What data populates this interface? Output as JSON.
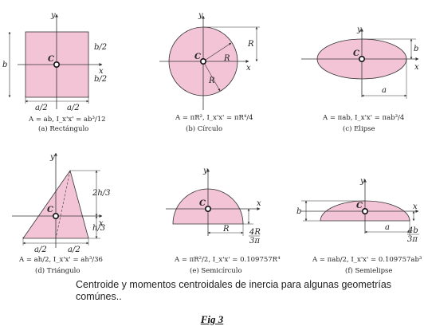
{
  "shapes": {
    "rectangle": {
      "labels": {
        "y": "y",
        "x": "x",
        "c": "C",
        "b_half_top": "b/2",
        "b_half_bottom": "b/2",
        "b": "b",
        "a_half_left": "a/2",
        "a_half_right": "a/2"
      },
      "formula": "A = ab,   I_x'x' = ab³/12",
      "caption": "(a) Rectángulo"
    },
    "circle": {
      "labels": {
        "y": "y",
        "x": "x",
        "c": "C",
        "r1": "R",
        "r2": "R",
        "r_dim": "R"
      },
      "formula": "A = πR²,   I_x'x' = πR⁴/4",
      "caption": "(b)  Círculo"
    },
    "ellipse": {
      "labels": {
        "y": "y",
        "x": "x",
        "c": "C",
        "b": "b",
        "a": "a"
      },
      "formula": "A = πab,   I_x'x' = πab³/4",
      "caption": "(c)  Elipse"
    },
    "triangle": {
      "labels": {
        "y": "y",
        "x": "x",
        "c": "C",
        "two_thirds": "2h/3",
        "one_third": "h/3",
        "a_half_left": "a/2",
        "a_half_right": "a/2"
      },
      "formula": "A = ah/2,   I_x'x' = ah³/36",
      "caption": "(d)  Triángulo"
    },
    "semicircle": {
      "labels": {
        "y": "y",
        "x": "x",
        "c": "C",
        "r": "R",
        "offset": "4R",
        "offset_den": "3π"
      },
      "formula": "A = πR²/2,   I_x'x' = 0.109757R⁴",
      "caption": "(e)  Semicírculo"
    },
    "semiellipse": {
      "labels": {
        "y": "y",
        "x": "x",
        "c": "C",
        "b": "b",
        "a": "a",
        "offset": "4b",
        "offset_den": "3π"
      },
      "formula": "A = πab/2,   I_x'x' = 0.109757ab³",
      "caption": "(f)  Semielipse"
    }
  },
  "caption": "Centroide y momentos centroidales de inercia para algunas geometrías comúnes..",
  "figure_label": "Fig 3",
  "colors": {
    "fill": "#f3c4d6",
    "stroke": "#333333"
  }
}
